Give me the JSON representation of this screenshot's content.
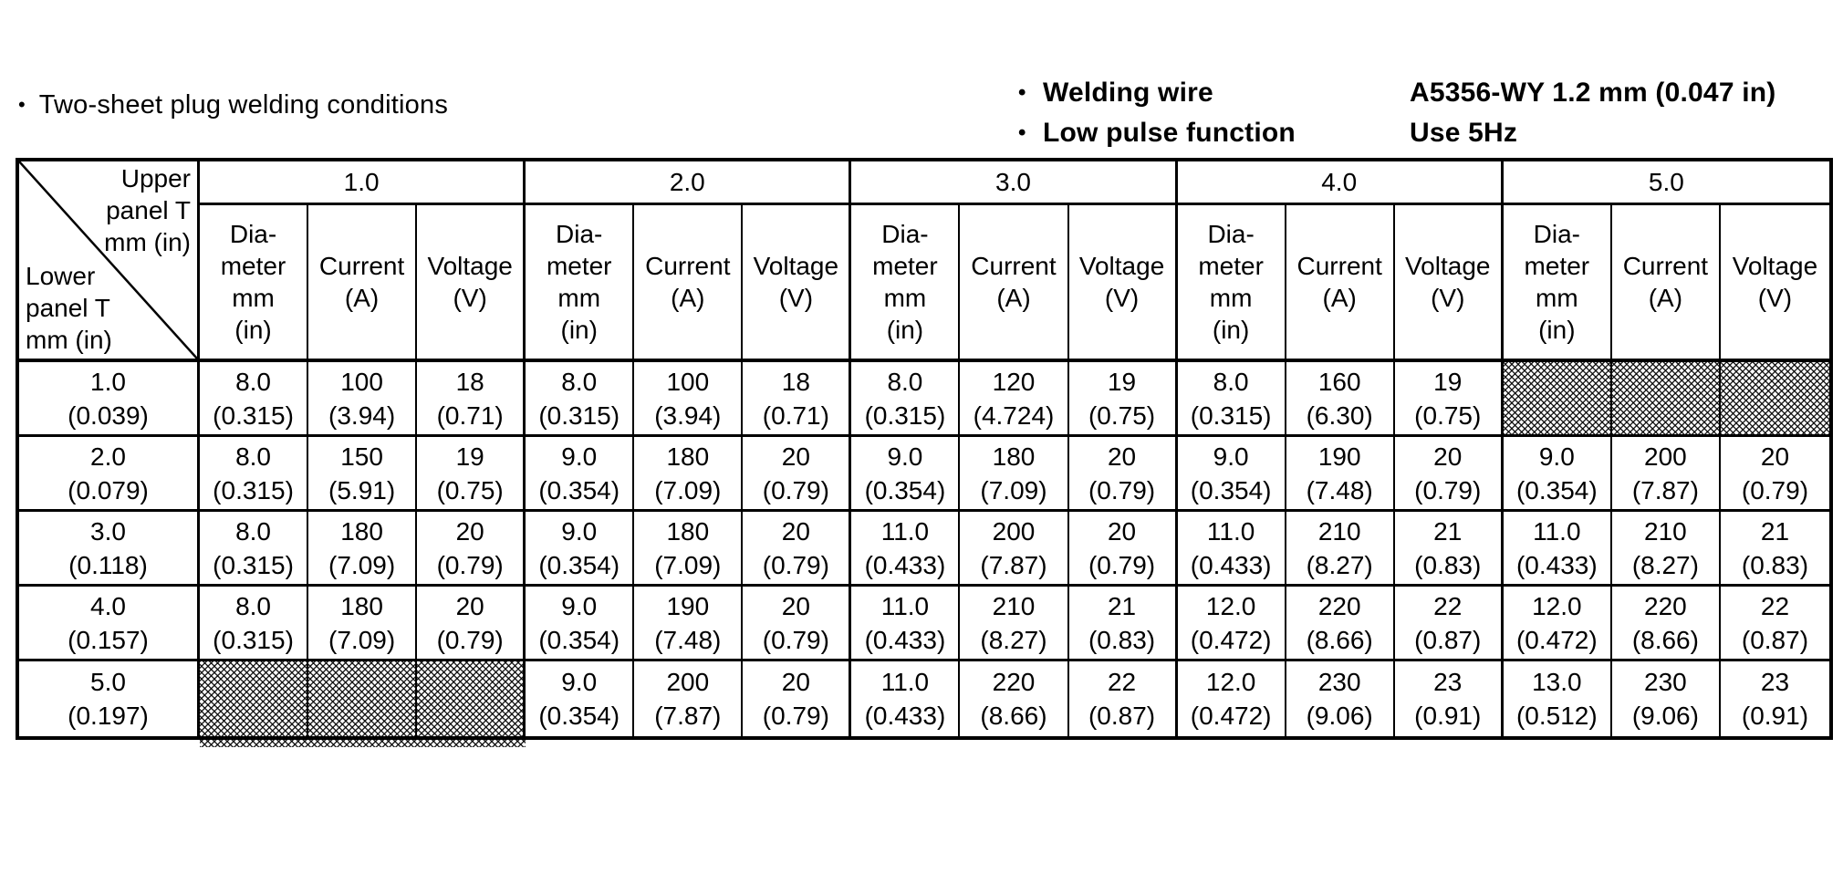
{
  "page": {
    "bullet": "•",
    "title": "Two-sheet plug welding conditions",
    "annotations": [
      {
        "bullet": "•",
        "label": "Welding wire",
        "value": "A5356-WY 1.2 mm (0.047 in)"
      },
      {
        "bullet": "•",
        "label": "Low pulse function",
        "value": "Use 5Hz"
      }
    ]
  },
  "table": {
    "corner": {
      "upper_lines": [
        "Upper",
        "panel T",
        "mm (in)"
      ],
      "lower_lines": [
        "Lower",
        "panel T",
        "mm (in)"
      ]
    },
    "upper_panel_values": [
      "1.0",
      "2.0",
      "3.0",
      "4.0",
      "5.0"
    ],
    "subcolumns": [
      [
        "Dia-",
        "meter",
        "mm",
        "(in)"
      ],
      [
        "Current",
        "(A)"
      ],
      [
        "Voltage",
        "(V)"
      ]
    ],
    "rows": [
      {
        "label": [
          "1.0",
          "(0.039)"
        ],
        "cells": [
          [
            "8.0",
            "(0.315)"
          ],
          [
            "100",
            "(3.94)"
          ],
          [
            "18",
            "(0.71)"
          ],
          [
            "8.0",
            "(0.315)"
          ],
          [
            "100",
            "(3.94)"
          ],
          [
            "18",
            "(0.71)"
          ],
          [
            "8.0",
            "(0.315)"
          ],
          [
            "120",
            "(4.724)"
          ],
          [
            "19",
            "(0.75)"
          ],
          [
            "8.0",
            "(0.315)"
          ],
          [
            "160",
            "(6.30)"
          ],
          [
            "19",
            "(0.75)"
          ],
          null,
          null,
          null
        ]
      },
      {
        "label": [
          "2.0",
          "(0.079)"
        ],
        "cells": [
          [
            "8.0",
            "(0.315)"
          ],
          [
            "150",
            "(5.91)"
          ],
          [
            "19",
            "(0.75)"
          ],
          [
            "9.0",
            "(0.354)"
          ],
          [
            "180",
            "(7.09)"
          ],
          [
            "20",
            "(0.79)"
          ],
          [
            "9.0",
            "(0.354)"
          ],
          [
            "180",
            "(7.09)"
          ],
          [
            "20",
            "(0.79)"
          ],
          [
            "9.0",
            "(0.354)"
          ],
          [
            "190",
            "(7.48)"
          ],
          [
            "20",
            "(0.79)"
          ],
          [
            "9.0",
            "(0.354)"
          ],
          [
            "200",
            "(7.87)"
          ],
          [
            "20",
            "(0.79)"
          ]
        ]
      },
      {
        "label": [
          "3.0",
          "(0.118)"
        ],
        "cells": [
          [
            "8.0",
            "(0.315)"
          ],
          [
            "180",
            "(7.09)"
          ],
          [
            "20",
            "(0.79)"
          ],
          [
            "9.0",
            "(0.354)"
          ],
          [
            "180",
            "(7.09)"
          ],
          [
            "20",
            "(0.79)"
          ],
          [
            "11.0",
            "(0.433)"
          ],
          [
            "200",
            "(7.87)"
          ],
          [
            "20",
            "(0.79)"
          ],
          [
            "11.0",
            "(0.433)"
          ],
          [
            "210",
            "(8.27)"
          ],
          [
            "21",
            "(0.83)"
          ],
          [
            "11.0",
            "(0.433)"
          ],
          [
            "210",
            "(8.27)"
          ],
          [
            "21",
            "(0.83)"
          ]
        ]
      },
      {
        "label": [
          "4.0",
          "(0.157)"
        ],
        "cells": [
          [
            "8.0",
            "(0.315)"
          ],
          [
            "180",
            "(7.09)"
          ],
          [
            "20",
            "(0.79)"
          ],
          [
            "9.0",
            "(0.354)"
          ],
          [
            "190",
            "(7.48)"
          ],
          [
            "20",
            "(0.79)"
          ],
          [
            "11.0",
            "(0.433)"
          ],
          [
            "210",
            "(8.27)"
          ],
          [
            "21",
            "(0.83)"
          ],
          [
            "12.0",
            "(0.472)"
          ],
          [
            "220",
            "(8.66)"
          ],
          [
            "22",
            "(0.87)"
          ],
          [
            "12.0",
            "(0.472)"
          ],
          [
            "220",
            "(8.66)"
          ],
          [
            "22",
            "(0.87)"
          ]
        ]
      },
      {
        "label": [
          "5.0",
          "(0.197)"
        ],
        "cells": [
          null,
          null,
          null,
          [
            "9.0",
            "(0.354)"
          ],
          [
            "200",
            "(7.87)"
          ],
          [
            "20",
            "(0.79)"
          ],
          [
            "11.0",
            "(0.433)"
          ],
          [
            "220",
            "(8.66)"
          ],
          [
            "22",
            "(0.87)"
          ],
          [
            "12.0",
            "(0.472)"
          ],
          [
            "230",
            "(9.06)"
          ],
          [
            "23",
            "(0.91)"
          ],
          [
            "13.0",
            "(0.512)"
          ],
          [
            "230",
            "(9.06)"
          ],
          [
            "23",
            "(0.91)"
          ]
        ]
      }
    ]
  }
}
